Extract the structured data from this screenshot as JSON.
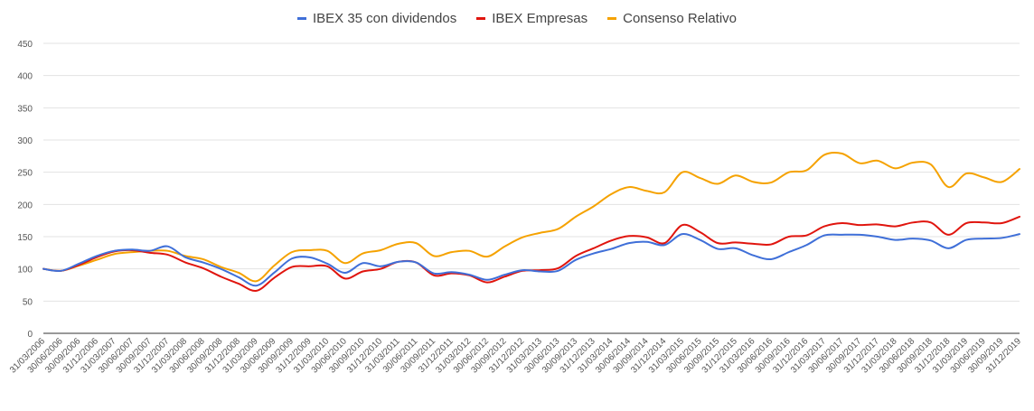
{
  "chart_data": {
    "type": "line",
    "title": "",
    "xlabel": "",
    "ylabel": "",
    "ylim": [
      0,
      450
    ],
    "yticks": [
      0,
      50,
      100,
      150,
      200,
      250,
      300,
      350,
      400,
      450
    ],
    "grid": true,
    "legend_position": "top",
    "categories": [
      "31/03/2006",
      "30/06/2006",
      "30/09/2006",
      "31/12/2006",
      "31/03/2007",
      "30/06/2007",
      "30/09/2007",
      "31/12/2007",
      "31/03/2008",
      "30/06/2008",
      "30/09/2008",
      "31/12/2008",
      "31/03/2009",
      "30/06/2009",
      "30/09/2009",
      "31/12/2009",
      "31/03/2010",
      "30/06/2010",
      "30/09/2010",
      "31/12/2010",
      "31/03/2011",
      "30/06/2011",
      "30/09/2011",
      "31/12/2011",
      "31/03/2012",
      "30/06/2012",
      "30/09/2012",
      "31/12/2012",
      "31/03/2013",
      "30/06/2013",
      "30/09/2013",
      "31/12/2013",
      "31/03/2014",
      "30/06/2014",
      "30/09/2014",
      "31/12/2014",
      "31/03/2015",
      "30/06/2015",
      "30/09/2015",
      "31/12/2015",
      "31/03/2016",
      "30/06/2016",
      "30/09/2016",
      "31/12/2016",
      "31/03/2017",
      "30/06/2017",
      "30/09/2017",
      "31/12/2017",
      "31/03/2018",
      "30/06/2018",
      "30/09/2018",
      "31/12/2018",
      "31/03/2019",
      "30/06/2019",
      "30/09/2019",
      "31/12/2019"
    ],
    "series": [
      {
        "name": "IBEX 35 con dividendos",
        "color": "#3f6fd8",
        "values": [
          100,
          97,
          108,
          120,
          128,
          130,
          128,
          135,
          118,
          110,
          100,
          87,
          74,
          94,
          116,
          118,
          108,
          94,
          109,
          104,
          111,
          110,
          93,
          95,
          91,
          83,
          91,
          98,
          96,
          97,
          114,
          124,
          131,
          140,
          142,
          137,
          154,
          145,
          131,
          132,
          121,
          115,
          126,
          137,
          152,
          153,
          153,
          150,
          145,
          147,
          144,
          132,
          145,
          147,
          148,
          154
        ]
      },
      {
        "name": "IBEX Empresas",
        "color": "#e0150e",
        "values": [
          100,
          97,
          106,
          118,
          127,
          129,
          125,
          122,
          110,
          101,
          88,
          77,
          66,
          86,
          103,
          104,
          104,
          85,
          96,
          100,
          111,
          110,
          90,
          93,
          90,
          79,
          88,
          97,
          98,
          101,
          120,
          132,
          144,
          151,
          149,
          140,
          168,
          157,
          140,
          141,
          139,
          138,
          150,
          152,
          166,
          171,
          168,
          169,
          166,
          172,
          172,
          153,
          171,
          172,
          171,
          181
        ]
      },
      {
        "name": "Consenso Relativo",
        "color": "#f5a200",
        "values": [
          100,
          97,
          105,
          114,
          123,
          126,
          128,
          128,
          120,
          115,
          103,
          94,
          81,
          105,
          126,
          129,
          128,
          109,
          124,
          129,
          139,
          140,
          120,
          126,
          128,
          119,
          135,
          149,
          156,
          162,
          181,
          197,
          216,
          227,
          221,
          219,
          250,
          241,
          232,
          245,
          235,
          234,
          250,
          253,
          277,
          279,
          264,
          268,
          256,
          265,
          262,
          227,
          248,
          242,
          235,
          255
        ]
      }
    ]
  }
}
